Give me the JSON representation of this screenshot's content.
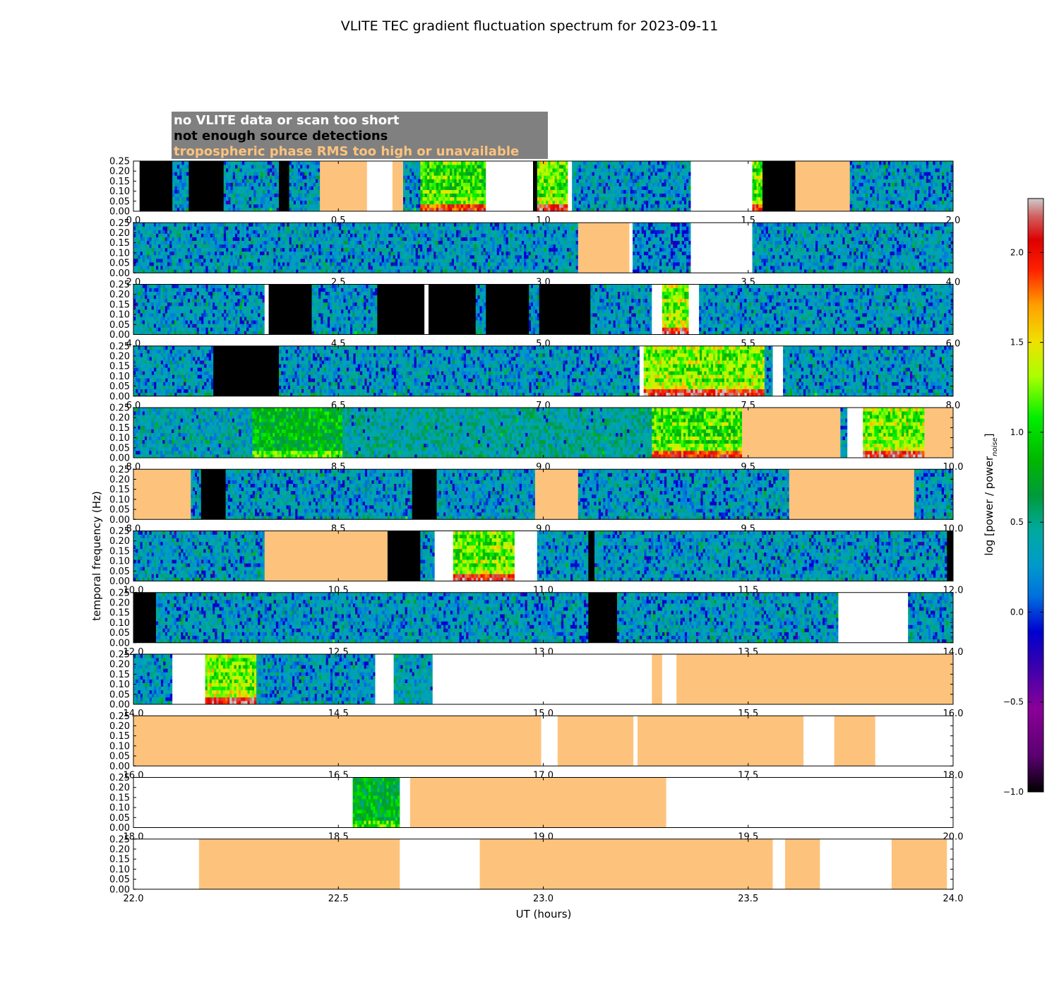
{
  "chart_data": {
    "type": "heatmap",
    "title": "VLITE TEC gradient fluctuation spectrum for 2023-09-11",
    "xlabel": "UT (hours)",
    "ylabel": "temporal frequency (Hz)",
    "ylim": [
      0,
      0.25
    ],
    "yticks": [
      "0.00",
      "0.05",
      "0.10",
      "0.15",
      "0.20",
      "0.25"
    ],
    "legend": [
      {
        "label": "no VLITE data or scan too short",
        "text_color": "#ffffff",
        "fill": "#ffffff"
      },
      {
        "label": "not enough source detections",
        "text_color": "#000000",
        "fill": "#000000"
      },
      {
        "label": "tropospheric phase RMS too high or unavailable",
        "text_color": "#fdc37d",
        "fill": "#fdc37d"
      }
    ],
    "legend_box_color": "#808080",
    "colorbar": {
      "label": "log [power / power",
      "label_sub": "noise",
      "label_end": "]",
      "range": [
        -1.0,
        2.3
      ],
      "ticks": [
        "−1.0",
        "−0.5",
        "0.0",
        "0.5",
        "1.0",
        "1.5",
        "2.0"
      ],
      "tick_values": [
        -1.0,
        -0.5,
        0.0,
        0.5,
        1.0,
        1.5,
        2.0
      ],
      "colormap": "nipy_spectral"
    },
    "panels": [
      {
        "xlim": [
          0,
          2
        ],
        "xticks": [
          "0.0",
          "0.5",
          "1.0",
          "1.5",
          "2.0"
        ],
        "segments": [
          [
            0,
            0.015,
            "none"
          ],
          [
            0.015,
            0.095,
            "nodet"
          ],
          [
            0.095,
            0.135,
            "spec",
            0.1
          ],
          [
            0.135,
            0.22,
            "nodet"
          ],
          [
            0.22,
            0.355,
            "spec",
            0.1
          ],
          [
            0.355,
            0.38,
            "nodet"
          ],
          [
            0.38,
            0.455,
            "spec",
            0.1
          ],
          [
            0.455,
            0.57,
            "tropo"
          ],
          [
            0.57,
            0.632,
            "none"
          ],
          [
            0.632,
            0.658,
            "tropo"
          ],
          [
            0.658,
            0.7,
            "spec",
            0.1
          ],
          [
            0.7,
            0.86,
            "spec",
            0.75
          ],
          [
            0.86,
            0.975,
            "none"
          ],
          [
            0.975,
            0.985,
            "nodet"
          ],
          [
            0.985,
            1.06,
            "spec",
            0.9
          ],
          [
            1.06,
            1.07,
            "none"
          ],
          [
            1.07,
            1.36,
            "spec",
            0.1
          ],
          [
            1.36,
            1.51,
            "none"
          ],
          [
            1.51,
            1.535,
            "spec",
            0.85
          ],
          [
            1.535,
            1.615,
            "nodet"
          ],
          [
            1.615,
            1.748,
            "tropo"
          ],
          [
            1.748,
            2.0,
            "spec",
            0.1
          ]
        ]
      },
      {
        "xlim": [
          2,
          4
        ],
        "xticks": [
          "2.0",
          "2.5",
          "3.0",
          "3.5",
          "4.0"
        ],
        "segments": [
          [
            2.0,
            3.085,
            "spec",
            0.1
          ],
          [
            3.085,
            3.21,
            "tropo"
          ],
          [
            3.21,
            3.218,
            "none"
          ],
          [
            3.218,
            3.36,
            "spec",
            0.05
          ],
          [
            3.36,
            3.51,
            "none"
          ],
          [
            3.51,
            4.0,
            "spec",
            0.1
          ]
        ]
      },
      {
        "xlim": [
          4,
          6
        ],
        "xticks": [
          "4.0",
          "4.5",
          "5.0",
          "5.5",
          "6.0"
        ],
        "segments": [
          [
            4.0,
            4.32,
            "spec",
            0.1
          ],
          [
            4.32,
            4.33,
            "none"
          ],
          [
            4.33,
            4.435,
            "nodet"
          ],
          [
            4.435,
            4.595,
            "spec",
            0.1
          ],
          [
            4.595,
            4.71,
            "nodet"
          ],
          [
            4.71,
            4.72,
            "none"
          ],
          [
            4.72,
            4.835,
            "nodet"
          ],
          [
            4.835,
            4.86,
            "spec",
            0.1
          ],
          [
            4.86,
            4.965,
            "nodet"
          ],
          [
            4.965,
            4.99,
            "spec",
            0.1
          ],
          [
            4.99,
            5.115,
            "nodet"
          ],
          [
            5.115,
            5.265,
            "spec",
            0.1
          ],
          [
            5.265,
            5.29,
            "none"
          ],
          [
            5.29,
            5.355,
            "spec",
            0.95
          ],
          [
            5.355,
            5.38,
            "none"
          ],
          [
            5.38,
            6.0,
            "spec",
            0.1
          ]
        ]
      },
      {
        "xlim": [
          6,
          8
        ],
        "xticks": [
          "6.0",
          "6.5",
          "7.0",
          "7.5",
          "8.0"
        ],
        "segments": [
          [
            6.0,
            6.195,
            "spec",
            0.1
          ],
          [
            6.195,
            6.355,
            "nodet"
          ],
          [
            6.355,
            7.235,
            "spec",
            0.1
          ],
          [
            7.235,
            7.245,
            "none"
          ],
          [
            7.245,
            7.54,
            "spec",
            0.95
          ],
          [
            7.54,
            7.56,
            "spec",
            0.1
          ],
          [
            7.56,
            7.585,
            "none"
          ],
          [
            7.585,
            8.0,
            "spec",
            0.1
          ]
        ]
      },
      {
        "xlim": [
          8,
          10
        ],
        "xticks": [
          "8.0",
          "8.5",
          "9.0",
          "9.5",
          "10.0"
        ],
        "segments": [
          [
            8.0,
            8.29,
            "spec",
            0.15
          ],
          [
            8.29,
            8.51,
            "spec",
            0.6
          ],
          [
            8.51,
            9.265,
            "spec",
            0.22
          ],
          [
            9.265,
            9.485,
            "spec",
            0.8
          ],
          [
            9.485,
            9.725,
            "tropo"
          ],
          [
            9.725,
            9.742,
            "spec",
            0.1
          ],
          [
            9.742,
            9.78,
            "none"
          ],
          [
            9.78,
            9.93,
            "spec",
            0.95
          ],
          [
            9.93,
            10.0,
            "tropo"
          ]
        ]
      },
      {
        "xlim": [
          8,
          10
        ],
        "xticks": [
          "8.0",
          "8.5",
          "9.0",
          "9.5",
          "10.0"
        ],
        "segments": [
          [
            8.0,
            8.14,
            "tropo"
          ],
          [
            8.14,
            8.165,
            "spec",
            0.1
          ],
          [
            8.165,
            8.225,
            "nodet"
          ],
          [
            8.225,
            8.68,
            "spec",
            0.1
          ],
          [
            8.68,
            8.74,
            "nodet"
          ],
          [
            8.74,
            8.98,
            "spec",
            0.1
          ],
          [
            8.98,
            9.085,
            "tropo"
          ],
          [
            9.085,
            9.6,
            "spec",
            0.1
          ],
          [
            9.6,
            9.905,
            "tropo"
          ],
          [
            9.905,
            10.0,
            "spec",
            0.1
          ]
        ]
      },
      {
        "xlim": [
          10,
          12
        ],
        "xticks": [
          "10.0",
          "10.5",
          "11.0",
          "11.5",
          "12.0"
        ],
        "segments": [
          [
            10.0,
            10.32,
            "spec",
            0.1
          ],
          [
            10.32,
            10.62,
            "tropo"
          ],
          [
            10.62,
            10.7,
            "nodet"
          ],
          [
            10.7,
            10.735,
            "spec",
            0.1
          ],
          [
            10.735,
            10.78,
            "none"
          ],
          [
            10.78,
            10.93,
            "spec",
            0.9
          ],
          [
            10.93,
            10.985,
            "none"
          ],
          [
            10.985,
            11.11,
            "spec",
            0.1
          ],
          [
            11.11,
            11.125,
            "nodet"
          ],
          [
            11.125,
            11.985,
            "spec",
            0.1
          ],
          [
            11.985,
            12.0,
            "nodet"
          ]
        ]
      },
      {
        "xlim": [
          12,
          14
        ],
        "xticks": [
          "12.0",
          "12.5",
          "13.0",
          "13.5",
          "14.0"
        ],
        "segments": [
          [
            12.0,
            12.055,
            "nodet"
          ],
          [
            12.055,
            13.11,
            "spec",
            0.1
          ],
          [
            13.11,
            13.18,
            "nodet"
          ],
          [
            13.18,
            13.72,
            "spec",
            0.1
          ],
          [
            13.72,
            13.89,
            "none"
          ],
          [
            13.89,
            14.0,
            "spec",
            0.1
          ]
        ]
      },
      {
        "xlim": [
          14,
          16
        ],
        "xticks": [
          "14.0",
          "14.5",
          "15.0",
          "15.5",
          "16.0"
        ],
        "segments": [
          [
            14.0,
            14.095,
            "spec",
            0.1
          ],
          [
            14.095,
            14.175,
            "none"
          ],
          [
            14.175,
            14.3,
            "spec",
            0.95
          ],
          [
            14.3,
            14.59,
            "spec",
            0.1
          ],
          [
            14.59,
            14.635,
            "none"
          ],
          [
            14.635,
            14.73,
            "spec",
            0.15
          ],
          [
            14.73,
            15.265,
            "none"
          ],
          [
            15.265,
            15.29,
            "tropo"
          ],
          [
            15.29,
            15.325,
            "none"
          ],
          [
            15.325,
            16.0,
            "tropo"
          ]
        ]
      },
      {
        "xlim": [
          16,
          18
        ],
        "xticks": [
          "16.0",
          "16.5",
          "17.0",
          "17.5",
          "18.0"
        ],
        "segments": [
          [
            16.0,
            16.995,
            "tropo"
          ],
          [
            16.995,
            17.035,
            "none"
          ],
          [
            17.035,
            17.22,
            "tropo"
          ],
          [
            17.22,
            17.23,
            "none"
          ],
          [
            17.23,
            17.635,
            "tropo"
          ],
          [
            17.635,
            17.71,
            "none"
          ],
          [
            17.71,
            17.81,
            "tropo"
          ],
          [
            17.81,
            18.0,
            "none"
          ]
        ]
      },
      {
        "xlim": [
          18,
          20
        ],
        "xticks": [
          "18.0",
          "18.5",
          "19.0",
          "19.5",
          "20.0"
        ],
        "segments": [
          [
            18.0,
            18.535,
            "none"
          ],
          [
            18.535,
            18.65,
            "spec",
            0.55
          ],
          [
            18.65,
            18.675,
            "none"
          ],
          [
            18.675,
            19.3,
            "tropo"
          ],
          [
            19.3,
            20.0,
            "none"
          ]
        ]
      },
      {
        "xlim": [
          22,
          24
        ],
        "xticks": [
          "22.0",
          "22.5",
          "23.0",
          "23.5",
          "24.0"
        ],
        "segments": [
          [
            22.0,
            22.16,
            "none"
          ],
          [
            22.16,
            22.65,
            "tropo"
          ],
          [
            22.65,
            22.845,
            "none"
          ],
          [
            22.845,
            23.56,
            "tropo"
          ],
          [
            23.56,
            23.59,
            "none"
          ],
          [
            23.59,
            23.675,
            "tropo"
          ],
          [
            23.675,
            23.85,
            "none"
          ],
          [
            23.85,
            23.985,
            "tropo"
          ],
          [
            23.985,
            24.0,
            "none"
          ]
        ]
      }
    ]
  }
}
